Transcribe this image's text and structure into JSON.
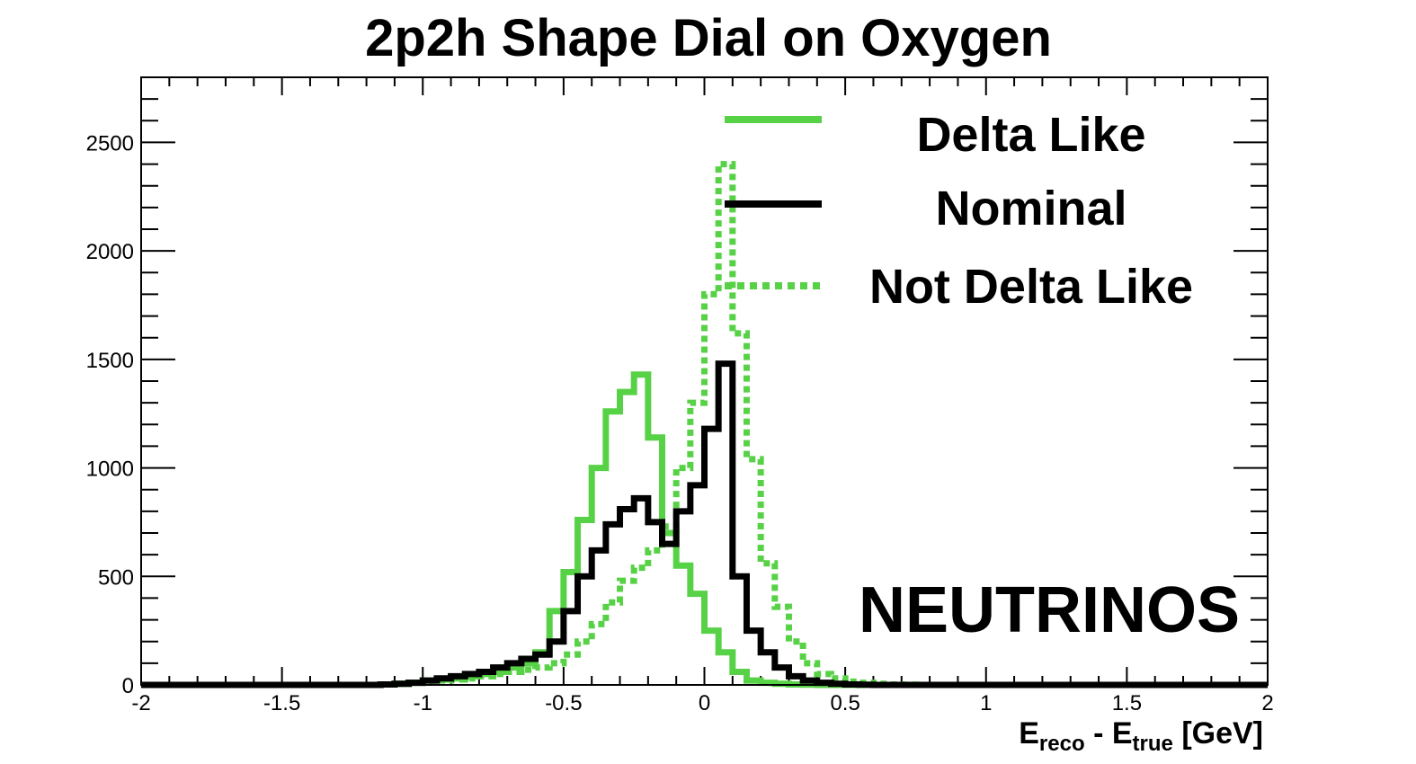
{
  "chart_data": {
    "type": "line",
    "title": "2p2h Shape Dial on Oxygen",
    "xlabel": {
      "main1": "E",
      "sub1": "reco",
      "mid": " - E",
      "sub2": "true",
      "unit": " [GeV]"
    },
    "ylabel": "",
    "xlim": [
      -2,
      2
    ],
    "ylim": [
      0,
      2800
    ],
    "x_ticks": [
      -2,
      -1.5,
      -1,
      -0.5,
      0,
      0.5,
      1,
      1.5,
      2
    ],
    "x_tick_labels": [
      "-2",
      "-1.5",
      "-1",
      "-0.5",
      "0",
      "0.5",
      "1",
      "1.5",
      "2"
    ],
    "y_ticks": [
      0,
      500,
      1000,
      1500,
      2000,
      2500
    ],
    "y_tick_labels": [
      "0",
      "500",
      "1000",
      "1500",
      "2000",
      "2500"
    ],
    "bin_width": 0.05,
    "bin_low_edges": [
      -2,
      -1.95,
      -1.9,
      -1.85,
      -1.8,
      -1.75,
      -1.7,
      -1.65,
      -1.6,
      -1.55,
      -1.5,
      -1.45,
      -1.4,
      -1.35,
      -1.3,
      -1.25,
      -1.2,
      -1.15,
      -1.1,
      -1.05,
      -1,
      -0.95,
      -0.9,
      -0.85,
      -0.8,
      -0.75,
      -0.7,
      -0.65,
      -0.6,
      -0.55,
      -0.5,
      -0.45,
      -0.4,
      -0.35,
      -0.3,
      -0.25,
      -0.2,
      -0.15,
      -0.1,
      -0.05,
      0,
      0.05,
      0.1,
      0.15,
      0.2,
      0.25,
      0.3,
      0.35,
      0.4,
      0.45,
      0.5,
      0.55,
      0.6,
      0.65,
      0.7,
      0.75,
      0.8,
      0.85,
      0.9,
      0.95,
      1,
      1.05,
      1.1,
      1.15,
      1.2,
      1.25,
      1.3,
      1.35,
      1.4,
      1.45,
      1.5,
      1.55,
      1.6,
      1.65,
      1.7,
      1.75,
      1.8,
      1.85,
      1.9,
      1.95
    ],
    "series": [
      {
        "name": "Delta Like",
        "color": "#57d145",
        "dash": "solid",
        "values": [
          0,
          0,
          0,
          0,
          0,
          0,
          0,
          0,
          0,
          0,
          0,
          0,
          0,
          0,
          0,
          0,
          0,
          2,
          5,
          10,
          20,
          25,
          30,
          40,
          50,
          60,
          80,
          100,
          150,
          340,
          520,
          760,
          1000,
          1260,
          1350,
          1430,
          1140,
          700,
          550,
          420,
          250,
          150,
          60,
          20,
          10,
          5,
          2,
          1,
          0,
          0,
          0,
          0,
          0,
          0,
          0,
          0,
          0,
          0,
          0,
          0,
          0,
          0,
          0,
          0,
          0,
          0,
          0,
          0,
          0,
          0,
          0,
          0,
          0,
          0,
          0,
          0,
          0,
          0,
          0,
          0
        ]
      },
      {
        "name": "Nominal",
        "color": "#000000",
        "dash": "solid",
        "values": [
          0,
          0,
          0,
          0,
          0,
          0,
          0,
          0,
          0,
          0,
          0,
          0,
          0,
          0,
          0,
          0,
          0,
          2,
          5,
          10,
          20,
          30,
          40,
          50,
          60,
          80,
          100,
          120,
          140,
          200,
          340,
          500,
          620,
          740,
          810,
          860,
          750,
          650,
          800,
          920,
          1180,
          1480,
          500,
          250,
          150,
          80,
          40,
          20,
          10,
          5,
          2,
          1,
          0,
          0,
          0,
          0,
          0,
          0,
          0,
          0,
          0,
          0,
          0,
          0,
          0,
          0,
          0,
          0,
          0,
          0,
          0,
          0,
          0,
          0,
          0,
          0,
          0,
          0,
          0,
          0,
          0,
          0,
          0
        ]
      },
      {
        "name": "Not Delta Like",
        "color": "#57d145",
        "dash": "dotted",
        "values": [
          0,
          0,
          0,
          0,
          0,
          0,
          0,
          0,
          0,
          0,
          0,
          0,
          0,
          0,
          0,
          0,
          0,
          2,
          5,
          10,
          15,
          20,
          25,
          30,
          40,
          50,
          60,
          70,
          80,
          100,
          140,
          200,
          280,
          380,
          480,
          540,
          620,
          730,
          1000,
          1300,
          1800,
          2400,
          1620,
          1040,
          560,
          360,
          200,
          100,
          50,
          30,
          15,
          10,
          5,
          2,
          1,
          0,
          0,
          0,
          0,
          0,
          0,
          0,
          0,
          0,
          0,
          0,
          0,
          0,
          0,
          0,
          0,
          0,
          0,
          0,
          0,
          0,
          0,
          0,
          0,
          0,
          0,
          0
        ]
      }
    ],
    "legend": [
      "Delta Like",
      "Nominal",
      "Not Delta Like"
    ],
    "legend_placement": "top-right",
    "annotation": "NEUTRINOS",
    "grid": false
  }
}
